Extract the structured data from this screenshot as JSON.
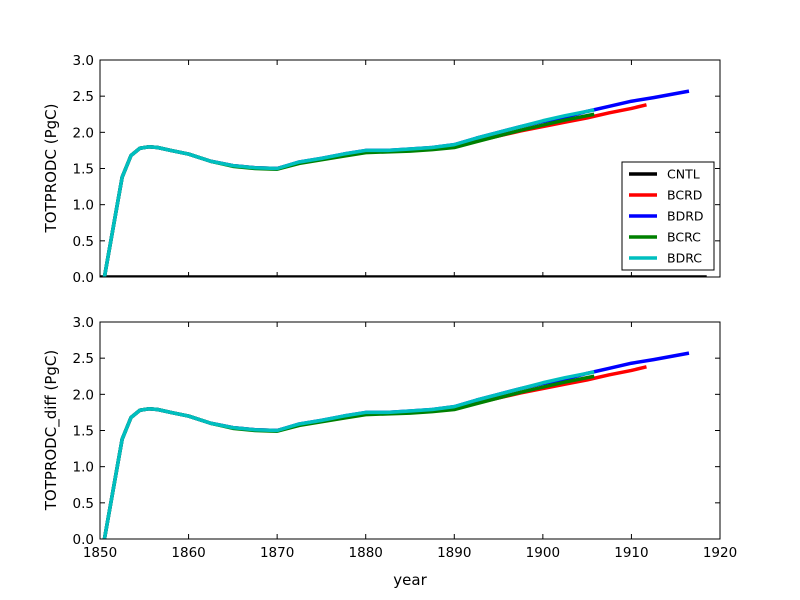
{
  "chart_data": [
    {
      "type": "line",
      "ylabel": "TOTPRODC (PgC)",
      "xlabel": "",
      "xlim": [
        1850,
        1920
      ],
      "ylim": [
        0.0,
        3.0
      ],
      "xticks": [
        1850,
        1860,
        1870,
        1880,
        1890,
        1900,
        1910,
        1920
      ],
      "yticks": [
        "0.0",
        "0.5",
        "1.0",
        "1.5",
        "2.0",
        "2.5",
        "3.0"
      ],
      "show_x_tick_labels": false,
      "grid": false,
      "legend": {
        "position": "lower-right",
        "entries": [
          "CNTL",
          "BCRD",
          "BDRD",
          "BCRC",
          "BDRC"
        ]
      },
      "series": [
        {
          "name": "CNTL",
          "color": "#000000",
          "x": [
            1850,
            1918.5
          ],
          "y": [
            0.0,
            0.0
          ]
        },
        {
          "name": "BCRD",
          "color": "#ff0000",
          "x": [
            1850.5,
            1852.5,
            1853.5,
            1854.5,
            1855.5,
            1856.5,
            1858,
            1860,
            1862.5,
            1865,
            1867.5,
            1870,
            1872.5,
            1875,
            1877.5,
            1880,
            1882.5,
            1885,
            1887.5,
            1890,
            1892.5,
            1895,
            1897.5,
            1900,
            1902.5,
            1905,
            1907.5,
            1910,
            1911.7
          ],
          "y": [
            0.0,
            1.38,
            1.68,
            1.78,
            1.8,
            1.79,
            1.75,
            1.7,
            1.6,
            1.54,
            1.51,
            1.5,
            1.58,
            1.63,
            1.68,
            1.73,
            1.74,
            1.75,
            1.77,
            1.8,
            1.88,
            1.95,
            2.02,
            2.08,
            2.14,
            2.2,
            2.27,
            2.33,
            2.38
          ]
        },
        {
          "name": "BDRD",
          "color": "#0000ff",
          "x": [
            1850.5,
            1852.5,
            1853.5,
            1854.5,
            1855.5,
            1856.5,
            1858,
            1860,
            1862.5,
            1865,
            1867.5,
            1870,
            1872.5,
            1875,
            1877.5,
            1880,
            1882.5,
            1885,
            1887.5,
            1890,
            1892.5,
            1895,
            1897.5,
            1900,
            1902.5,
            1905,
            1907.5,
            1910,
            1912.5,
            1916.5
          ],
          "y": [
            0.0,
            1.38,
            1.68,
            1.78,
            1.8,
            1.79,
            1.75,
            1.7,
            1.6,
            1.54,
            1.51,
            1.5,
            1.59,
            1.64,
            1.7,
            1.75,
            1.75,
            1.77,
            1.79,
            1.83,
            1.92,
            2.0,
            2.08,
            2.15,
            2.21,
            2.29,
            2.36,
            2.43,
            2.48,
            2.57
          ]
        },
        {
          "name": "BCRC",
          "color": "#008000",
          "x": [
            1850.5,
            1852.5,
            1853.5,
            1854.5,
            1855.5,
            1856.5,
            1858,
            1860,
            1862.5,
            1865,
            1867.5,
            1870,
            1872.5,
            1875,
            1877.5,
            1880,
            1882.5,
            1885,
            1887.5,
            1890,
            1892.5,
            1895,
            1897.5,
            1900,
            1902.5,
            1905.8
          ],
          "y": [
            0.0,
            1.38,
            1.68,
            1.78,
            1.8,
            1.79,
            1.75,
            1.7,
            1.6,
            1.53,
            1.5,
            1.49,
            1.57,
            1.62,
            1.67,
            1.72,
            1.73,
            1.74,
            1.76,
            1.79,
            1.87,
            1.95,
            2.03,
            2.1,
            2.17,
            2.25
          ]
        },
        {
          "name": "BDRC",
          "color": "#00bfbf",
          "x": [
            1850.5,
            1852.5,
            1853.5,
            1854.5,
            1855.5,
            1856.5,
            1858,
            1860,
            1862.5,
            1865,
            1867.5,
            1870,
            1872.5,
            1875,
            1877.5,
            1880,
            1882.5,
            1885,
            1887.5,
            1890,
            1892.5,
            1895,
            1897.5,
            1900,
            1902.5,
            1905.8
          ],
          "y": [
            0.0,
            1.38,
            1.68,
            1.78,
            1.8,
            1.79,
            1.75,
            1.7,
            1.6,
            1.54,
            1.51,
            1.5,
            1.59,
            1.64,
            1.7,
            1.75,
            1.75,
            1.77,
            1.79,
            1.83,
            1.92,
            2.0,
            2.08,
            2.16,
            2.23,
            2.31
          ]
        }
      ]
    },
    {
      "type": "line",
      "ylabel": "TOTPRODC_diff (PgC)",
      "xlabel": "year",
      "xlim": [
        1850,
        1920
      ],
      "ylim": [
        0.0,
        3.0
      ],
      "xticks": [
        1850,
        1860,
        1870,
        1880,
        1890,
        1900,
        1910,
        1920
      ],
      "yticks": [
        "0.0",
        "0.5",
        "1.0",
        "1.5",
        "2.0",
        "2.5",
        "3.0"
      ],
      "show_x_tick_labels": true,
      "grid": false,
      "series": [
        {
          "name": "BCRD",
          "color": "#ff0000",
          "x": [
            1850.5,
            1852.5,
            1853.5,
            1854.5,
            1855.5,
            1856.5,
            1858,
            1860,
            1862.5,
            1865,
            1867.5,
            1870,
            1872.5,
            1875,
            1877.5,
            1880,
            1882.5,
            1885,
            1887.5,
            1890,
            1892.5,
            1895,
            1897.5,
            1900,
            1902.5,
            1905,
            1907.5,
            1910,
            1911.7
          ],
          "y": [
            0.0,
            1.38,
            1.68,
            1.78,
            1.8,
            1.79,
            1.75,
            1.7,
            1.6,
            1.54,
            1.51,
            1.5,
            1.58,
            1.63,
            1.68,
            1.73,
            1.74,
            1.75,
            1.77,
            1.8,
            1.88,
            1.95,
            2.02,
            2.08,
            2.14,
            2.2,
            2.27,
            2.33,
            2.38
          ]
        },
        {
          "name": "BDRD",
          "color": "#0000ff",
          "x": [
            1850.5,
            1852.5,
            1853.5,
            1854.5,
            1855.5,
            1856.5,
            1858,
            1860,
            1862.5,
            1865,
            1867.5,
            1870,
            1872.5,
            1875,
            1877.5,
            1880,
            1882.5,
            1885,
            1887.5,
            1890,
            1892.5,
            1895,
            1897.5,
            1900,
            1902.5,
            1905,
            1907.5,
            1910,
            1912.5,
            1916.5
          ],
          "y": [
            0.0,
            1.38,
            1.68,
            1.78,
            1.8,
            1.79,
            1.75,
            1.7,
            1.6,
            1.54,
            1.51,
            1.5,
            1.59,
            1.64,
            1.7,
            1.75,
            1.75,
            1.77,
            1.79,
            1.83,
            1.92,
            2.0,
            2.08,
            2.15,
            2.21,
            2.29,
            2.36,
            2.43,
            2.48,
            2.57
          ]
        },
        {
          "name": "BCRC",
          "color": "#008000",
          "x": [
            1850.5,
            1852.5,
            1853.5,
            1854.5,
            1855.5,
            1856.5,
            1858,
            1860,
            1862.5,
            1865,
            1867.5,
            1870,
            1872.5,
            1875,
            1877.5,
            1880,
            1882.5,
            1885,
            1887.5,
            1890,
            1892.5,
            1895,
            1897.5,
            1900,
            1902.5,
            1905.8
          ],
          "y": [
            0.0,
            1.38,
            1.68,
            1.78,
            1.8,
            1.79,
            1.75,
            1.7,
            1.6,
            1.53,
            1.5,
            1.49,
            1.57,
            1.62,
            1.67,
            1.72,
            1.73,
            1.74,
            1.76,
            1.79,
            1.87,
            1.95,
            2.03,
            2.1,
            2.17,
            2.25
          ]
        },
        {
          "name": "BDRC",
          "color": "#00bfbf",
          "x": [
            1850.5,
            1852.5,
            1853.5,
            1854.5,
            1855.5,
            1856.5,
            1858,
            1860,
            1862.5,
            1865,
            1867.5,
            1870,
            1872.5,
            1875,
            1877.5,
            1880,
            1882.5,
            1885,
            1887.5,
            1890,
            1892.5,
            1895,
            1897.5,
            1900,
            1902.5,
            1905.8
          ],
          "y": [
            0.0,
            1.38,
            1.68,
            1.78,
            1.8,
            1.79,
            1.75,
            1.7,
            1.6,
            1.54,
            1.51,
            1.5,
            1.59,
            1.64,
            1.7,
            1.75,
            1.75,
            1.77,
            1.79,
            1.83,
            1.92,
            2.0,
            2.08,
            2.16,
            2.23,
            2.31
          ]
        }
      ]
    }
  ]
}
